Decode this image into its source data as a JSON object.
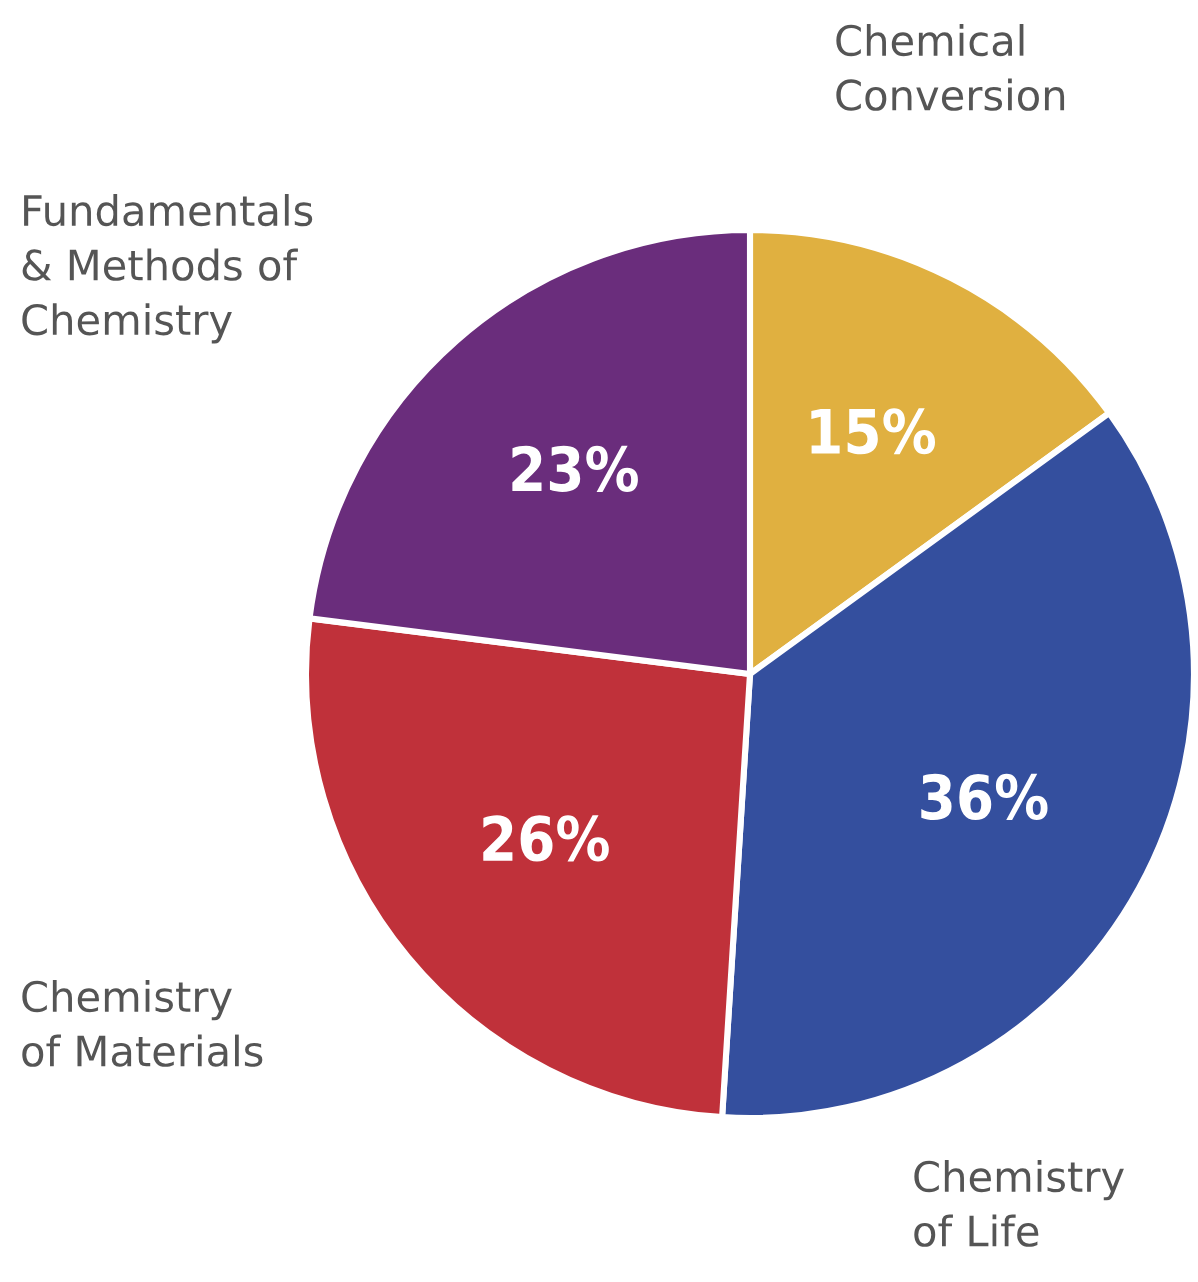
{
  "chart_data": {
    "type": "pie",
    "categories": [
      "Chemical\nConversion",
      "Chemistry\nof Life",
      "Chemistry\nof Materials",
      "Fundamentals\n& Methods of\nChemistry"
    ],
    "values": [
      15,
      36,
      26,
      23
    ],
    "colors": [
      "#e0b040",
      "#344f9e",
      "#c0313a",
      "#6a2d7c"
    ],
    "value_labels": [
      "15%",
      "36%",
      "26%",
      "23%"
    ],
    "legend": false
  }
}
